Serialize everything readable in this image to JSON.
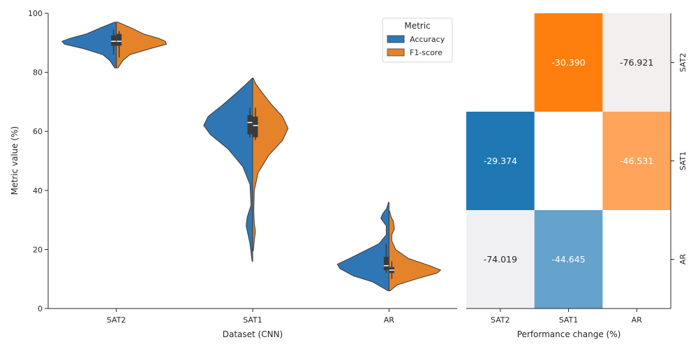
{
  "chart_data": [
    {
      "type": "violin",
      "xlabel": "Dataset (CNN)",
      "ylabel": "Metric value (%)",
      "ylim": [
        0,
        100
      ],
      "yticks": [
        0,
        20,
        40,
        60,
        80,
        100
      ],
      "categories": [
        "SAT2",
        "SAT1",
        "AR"
      ],
      "split": true,
      "legend": {
        "title": "Metric",
        "position": "top-right",
        "entries": [
          "Accuracy",
          "F1-score"
        ]
      },
      "series": [
        {
          "name": "Accuracy",
          "color": "#2f77b4",
          "violins": [
            {
              "category": "SAT2",
              "min": 81.5,
              "max": 97,
              "q1": 89,
              "median": 90.5,
              "q3": 92.5,
              "whisker_low": 86,
              "whisker_high": 94.5,
              "profile": [
                [
                  81.5,
                  0.03
                ],
                [
                  84,
                  0.12
                ],
                [
                  86,
                  0.25
                ],
                [
                  88,
                  0.6
                ],
                [
                  89.5,
                  0.95
                ],
                [
                  90.5,
                  1.0
                ],
                [
                  91.5,
                  0.85
                ],
                [
                  93,
                  0.55
                ],
                [
                  95,
                  0.3
                ],
                [
                  97,
                  0.03
                ]
              ]
            },
            {
              "category": "SAT1",
              "min": 16,
              "max": 78,
              "q1": 59,
              "median": 63,
              "q3": 65.5,
              "whisker_low": 58,
              "whisker_high": 68,
              "profile": [
                [
                  16,
                  0.01
                ],
                [
                  22,
                  0.05
                ],
                [
                  28,
                  0.12
                ],
                [
                  31,
                  0.1
                ],
                [
                  35,
                  0.03
                ],
                [
                  42,
                  0.05
                ],
                [
                  48,
                  0.18
                ],
                [
                  54,
                  0.45
                ],
                [
                  59,
                  0.78
                ],
                [
                  62,
                  0.9
                ],
                [
                  65,
                  0.82
                ],
                [
                  69,
                  0.55
                ],
                [
                  73,
                  0.3
                ],
                [
                  76,
                  0.12
                ],
                [
                  78,
                  0.01
                ]
              ]
            },
            {
              "category": "AR",
              "min": 6,
              "max": 36,
              "q1": 13,
              "median": 14.5,
              "q3": 17.5,
              "whisker_low": 12,
              "whisker_high": 22,
              "profile": [
                [
                  6,
                  0.02
                ],
                [
                  9,
                  0.3
                ],
                [
                  11,
                  0.65
                ],
                [
                  13.5,
                  0.9
                ],
                [
                  15,
                  0.95
                ],
                [
                  17,
                  0.72
                ],
                [
                  19.5,
                  0.45
                ],
                [
                  22,
                  0.18
                ],
                [
                  25,
                  0.05
                ],
                [
                  28,
                  0.05
                ],
                [
                  30.5,
                  0.15
                ],
                [
                  32,
                  0.12
                ],
                [
                  34,
                  0.04
                ],
                [
                  36,
                  0.01
                ]
              ]
            }
          ]
        },
        {
          "name": "F1-score",
          "color": "#e5832a",
          "violins": [
            {
              "category": "SAT2",
              "min": 81.5,
              "max": 97,
              "q1": 89,
              "median": 90.5,
              "q3": 93,
              "whisker_low": 85,
              "whisker_high": 94,
              "profile": [
                [
                  81.5,
                  0.03
                ],
                [
                  84,
                  0.12
                ],
                [
                  86,
                  0.25
                ],
                [
                  88,
                  0.62
                ],
                [
                  89.5,
                  0.92
                ],
                [
                  90.5,
                  0.9
                ],
                [
                  91.5,
                  0.78
                ],
                [
                  93,
                  0.5
                ],
                [
                  95,
                  0.28
                ],
                [
                  97,
                  0.03
                ]
              ]
            },
            {
              "category": "SAT1",
              "min": 19.5,
              "max": 78,
              "q1": 58,
              "median": 62,
              "q3": 65,
              "whisker_low": 57,
              "whisker_high": 68,
              "profile": [
                [
                  19.5,
                  0.01
                ],
                [
                  23,
                  0.03
                ],
                [
                  26,
                  0.05
                ],
                [
                  29,
                  0.03
                ],
                [
                  33,
                  0.02
                ],
                [
                  40,
                  0.03
                ],
                [
                  46,
                  0.1
                ],
                [
                  52,
                  0.3
                ],
                [
                  57,
                  0.55
                ],
                [
                  61,
                  0.65
                ],
                [
                  65,
                  0.55
                ],
                [
                  69,
                  0.35
                ],
                [
                  73,
                  0.18
                ],
                [
                  76,
                  0.06
                ],
                [
                  78,
                  0.01
                ]
              ]
            },
            {
              "category": "AR",
              "min": 6,
              "max": 33,
              "q1": 12,
              "median": 13,
              "q3": 14,
              "whisker_low": 10,
              "whisker_high": 16,
              "profile": [
                [
                  6,
                  0.02
                ],
                [
                  8,
                  0.15
                ],
                [
                  10,
                  0.5
                ],
                [
                  12,
                  0.88
                ],
                [
                  13,
                  0.95
                ],
                [
                  14.5,
                  0.75
                ],
                [
                  17,
                  0.35
                ],
                [
                  20,
                  0.12
                ],
                [
                  23,
                  0.05
                ],
                [
                  25,
                  0.05
                ],
                [
                  27,
                  0.1
                ],
                [
                  29.5,
                  0.08
                ],
                [
                  31,
                  0.04
                ],
                [
                  33,
                  0.01
                ]
              ]
            }
          ]
        }
      ]
    },
    {
      "type": "heatmap",
      "xlabel": "Performance change (%)",
      "x_categories": [
        "SAT2",
        "SAT1",
        "AR"
      ],
      "y_categories": [
        "SAT2",
        "SAT1",
        "AR"
      ],
      "y_axis_side": "right",
      "cells": [
        {
          "row": "SAT2",
          "col": "SAT2",
          "value": null,
          "label": "",
          "color": "#ffffff"
        },
        {
          "row": "SAT2",
          "col": "SAT1",
          "value": -30.39,
          "label": "-30.390",
          "color": "#ff7f0e"
        },
        {
          "row": "SAT2",
          "col": "AR",
          "value": -76.921,
          "label": "-76.921",
          "color": "#f2efee"
        },
        {
          "row": "SAT1",
          "col": "SAT2",
          "value": -29.374,
          "label": "-29.374",
          "color": "#1f77b4"
        },
        {
          "row": "SAT1",
          "col": "SAT1",
          "value": null,
          "label": "",
          "color": "#ffffff"
        },
        {
          "row": "SAT1",
          "col": "AR",
          "value": -46.531,
          "label": "-46.531",
          "color": "#fea55b"
        },
        {
          "row": "AR",
          "col": "SAT2",
          "value": -74.019,
          "label": "-74.019",
          "color": "#f0f0f2"
        },
        {
          "row": "AR",
          "col": "SAT1",
          "value": -44.645,
          "label": "-44.645",
          "color": "#65a2cc"
        },
        {
          "row": "AR",
          "col": "AR",
          "value": null,
          "label": "",
          "color": "#ffffff"
        }
      ]
    }
  ]
}
